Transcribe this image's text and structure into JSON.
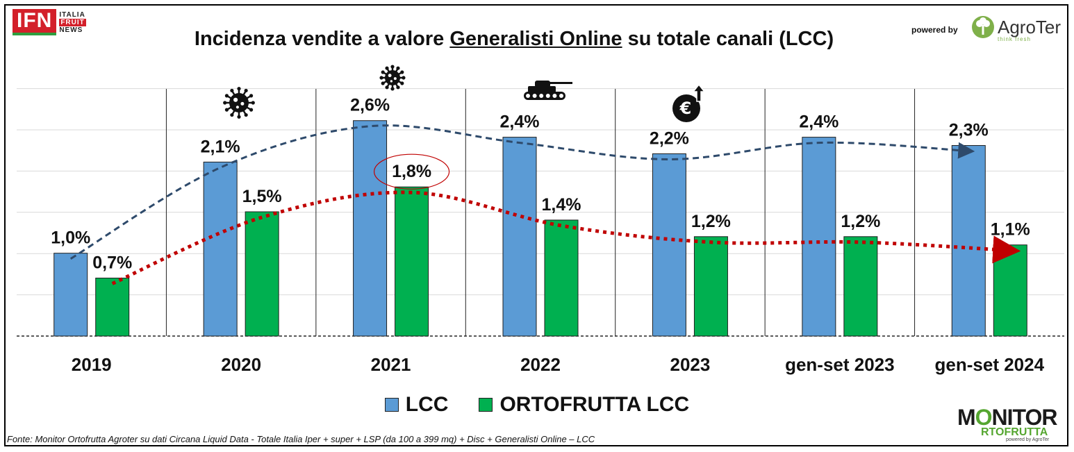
{
  "header": {
    "ifn_mark": "IFN",
    "ifn_lines": [
      "ITALIA",
      "FRUIT",
      "NEWS"
    ],
    "title_before": "Incidenza vendite a valore ",
    "title_underlined": "Generalisti Online",
    "title_after": " su totale canali (LCC)",
    "powered_by": "powered by",
    "agroter_name": "AgroTer",
    "agroter_tagline": "think fresh"
  },
  "chart_data": {
    "type": "bar",
    "categories": [
      "2019",
      "2020",
      "2021",
      "2022",
      "2023",
      "gen-set 2023",
      "gen-set 2024"
    ],
    "series": [
      {
        "name": "LCC",
        "color": "#5b9bd5",
        "trend_color": "#2e4a6b",
        "values": [
          1.0,
          2.1,
          2.6,
          2.4,
          2.2,
          2.4,
          2.3
        ],
        "labels": [
          "1,0%",
          "2,1%",
          "2,6%",
          "2,4%",
          "2,2%",
          "2,4%",
          "2,3%"
        ]
      },
      {
        "name": "ORTOFRUTTA LCC",
        "color": "#00b050",
        "trend_color": "#c00000",
        "values": [
          0.7,
          1.5,
          1.8,
          1.4,
          1.2,
          1.2,
          1.1
        ],
        "labels": [
          "0,7%",
          "1,5%",
          "1,8%",
          "1,4%",
          "1,2%",
          "1,2%",
          "1,1%"
        ]
      }
    ],
    "ylim": [
      0,
      3.0
    ],
    "grid": true,
    "legend": "bottom",
    "highlight": {
      "series": 1,
      "category": 2
    },
    "event_icons": [
      {
        "category": 1,
        "icon": "virus-icon"
      },
      {
        "category": 2,
        "icon": "virus-icon"
      },
      {
        "category": 3,
        "icon": "tank-icon"
      },
      {
        "category": 4,
        "icon": "euro-up-icon"
      }
    ]
  },
  "footer": {
    "source": "Fonte: Monitor Ortofrutta Agroter su dati Circana Liquid Data - Totale Italia Iper + super + LSP (da 100 a 399 mq) + Disc + Generalisti Online – LCC",
    "monitor_line1_a": "M",
    "monitor_line1_o": "O",
    "monitor_line1_b": "NITOR",
    "monitor_line2": "RTOFRUTTA",
    "monitor_line3": "powered by AgroTer"
  }
}
